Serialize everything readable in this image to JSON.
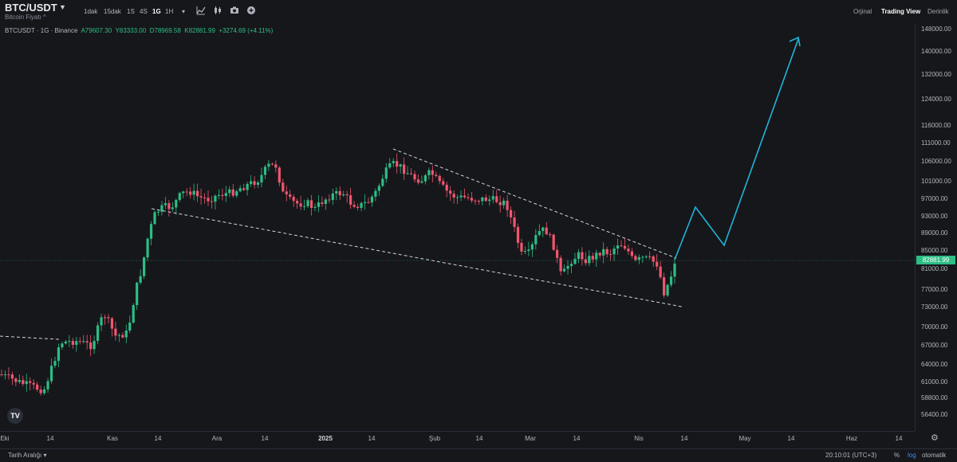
{
  "header": {
    "symbol": "BTC/USDT",
    "subtitle": "Bitcoin Fiyatı ^",
    "intervals": [
      "1dak",
      "15dak",
      "1S",
      "4S",
      "1G",
      "1H"
    ],
    "active_interval": "1G",
    "views": {
      "original": "Orjinal",
      "trading_view": "Trading View",
      "depth": "Derinlik"
    },
    "active_view": "Trading View"
  },
  "legend": {
    "title": "BTCUSDT · 1G · Binance",
    "open": "A79607.30",
    "high": "Y83333.00",
    "low": "D78969.58",
    "close": "K82881.99",
    "change": "+3274.69 (+4.11%)"
  },
  "price_axis": {
    "labels": [
      "148000.00",
      "140000.00",
      "132000.00",
      "124000.00",
      "116000.00",
      "111000.00",
      "106000.00",
      "101000.00",
      "97000.00",
      "93000.00",
      "89000.00",
      "85000.00",
      "81000.00",
      "77000.00",
      "73000.00",
      "70000.00",
      "67000.00",
      "64000.00",
      "61000.00",
      "58800.00",
      "56400.00"
    ],
    "last_price": "82881.99"
  },
  "time_axis": {
    "labels": [
      "Eki",
      "14",
      "Kas",
      "14",
      "Ara",
      "14",
      "2025",
      "14",
      "Şub",
      "14",
      "Mar",
      "14",
      "Nis",
      "14",
      "May",
      "14",
      "Haz",
      "14"
    ]
  },
  "footer": {
    "date_range": "Tarih Aralığı",
    "time": "20:10:01 (UTC+3)",
    "percent": "%",
    "log": "log",
    "auto": "otomatik"
  },
  "branding": {
    "logo": "TV"
  },
  "colors": {
    "up": "#2dbd85",
    "down": "#f0566e",
    "projection": "#1fb5d8",
    "trendline": "#d1d4dc"
  },
  "chart_data": {
    "type": "candlestick",
    "series": [
      {
        "name": "BTCUSDT"
      }
    ],
    "scale": "log",
    "last_price": 82881.99,
    "x_range": [
      "Eki",
      "Haz 14"
    ],
    "y_range": [
      56400,
      148000
    ],
    "shape": "falling wedge breakout projection"
  }
}
